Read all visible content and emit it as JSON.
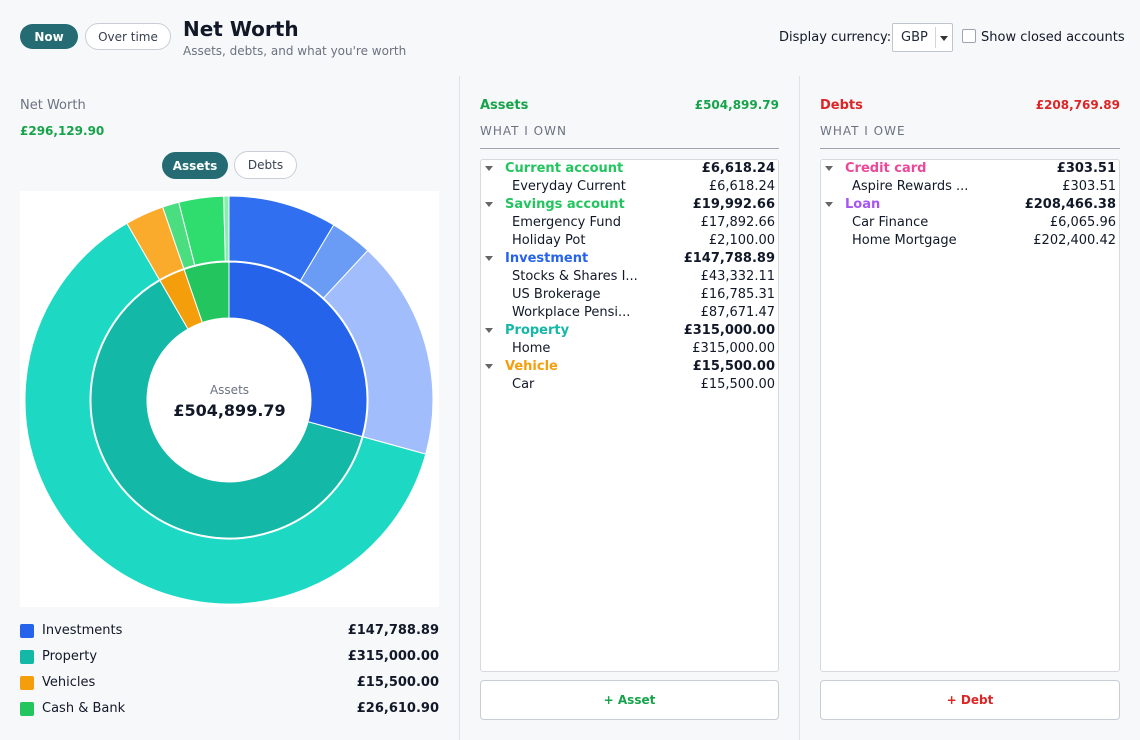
{
  "header": {
    "now_label": "Now",
    "overtime_label": "Over time",
    "title": "Net Worth",
    "subtitle": "Assets, debts, and what you're worth",
    "currency_label": "Display currency:",
    "currency_value": "GBP",
    "show_closed_label": "Show closed accounts"
  },
  "summary": {
    "net_worth_label": "Net Worth",
    "net_worth_value": "£296,129.90",
    "seg_assets": "Assets",
    "seg_debts": "Debts"
  },
  "chart_data": {
    "type": "pie",
    "center_label": "Assets",
    "center_value": "£504,899.79",
    "inner": [
      {
        "name": "Investments",
        "value": 147788.89,
        "color": "#2563eb"
      },
      {
        "name": "Property",
        "value": 315000.0,
        "color": "#14b8a6"
      },
      {
        "name": "Vehicles",
        "value": 15500.0,
        "color": "#f59e0b"
      },
      {
        "name": "Cash & Bank",
        "value": 26610.9,
        "color": "#22c55e"
      }
    ],
    "outer": [
      {
        "name": "Stocks & Shares ISA",
        "value": 43332.11,
        "color": "#2f6ff0"
      },
      {
        "name": "US Brokerage",
        "value": 16785.31,
        "color": "#6b9cf5"
      },
      {
        "name": "Workplace Pension",
        "value": 87671.47,
        "color": "#a2bdfb"
      },
      {
        "name": "Home",
        "value": 315000.0,
        "color": "#1dd9c3"
      },
      {
        "name": "Car",
        "value": 15500.0,
        "color": "#fbab2c"
      },
      {
        "name": "Everyday Current",
        "value": 6618.24,
        "color": "#4ade80"
      },
      {
        "name": "Emergency Fund",
        "value": 17892.66,
        "color": "#2fdc6e"
      },
      {
        "name": "Holiday Pot",
        "value": 2100.0,
        "color": "#86efac"
      }
    ]
  },
  "legend": [
    {
      "name": "Investments",
      "value": "£147,788.89",
      "color": "#2563eb"
    },
    {
      "name": "Property",
      "value": "£315,000.00",
      "color": "#14b8a6"
    },
    {
      "name": "Vehicles",
      "value": "£15,500.00",
      "color": "#f59e0b"
    },
    {
      "name": "Cash & Bank",
      "value": "£26,610.90",
      "color": "#22c55e"
    }
  ],
  "assets": {
    "title": "Assets",
    "total": "£504,899.79",
    "subtitle": "WHAT I OWN",
    "add_label": "+ Asset",
    "color": "#16a34a",
    "groups": [
      {
        "name": "Current account",
        "total": "£6,618.24",
        "color": "#22c55e",
        "items": [
          {
            "name": "Everyday Current",
            "value": "£6,618.24"
          }
        ]
      },
      {
        "name": "Savings account",
        "total": "£19,992.66",
        "color": "#22c55e",
        "items": [
          {
            "name": "Emergency Fund",
            "value": "£17,892.66"
          },
          {
            "name": "Holiday Pot",
            "value": "£2,100.00"
          }
        ]
      },
      {
        "name": "Investment",
        "total": "£147,788.89",
        "color": "#2563eb",
        "items": [
          {
            "name": "Stocks & Shares I...",
            "value": "£43,332.11"
          },
          {
            "name": "US Brokerage",
            "value": "£16,785.31"
          },
          {
            "name": "Workplace Pensi...",
            "value": "£87,671.47"
          }
        ]
      },
      {
        "name": "Property",
        "total": "£315,000.00",
        "color": "#14b8a6",
        "items": [
          {
            "name": "Home",
            "value": "£315,000.00"
          }
        ]
      },
      {
        "name": "Vehicle",
        "total": "£15,500.00",
        "color": "#f59e0b",
        "items": [
          {
            "name": "Car",
            "value": "£15,500.00"
          }
        ]
      }
    ]
  },
  "debts": {
    "title": "Debts",
    "total": "£208,769.89",
    "subtitle": "WHAT I OWE",
    "add_label": "+ Debt",
    "color": "#dc2626",
    "groups": [
      {
        "name": "Credit card",
        "total": "£303.51",
        "color": "#ec4899",
        "items": [
          {
            "name": "Aspire Rewards ...",
            "value": "£303.51"
          }
        ]
      },
      {
        "name": "Loan",
        "total": "£208,466.38",
        "color": "#a855f7",
        "items": [
          {
            "name": "Car Finance",
            "value": "£6,065.96"
          },
          {
            "name": "Home Mortgage",
            "value": "£202,400.42"
          }
        ]
      }
    ]
  }
}
